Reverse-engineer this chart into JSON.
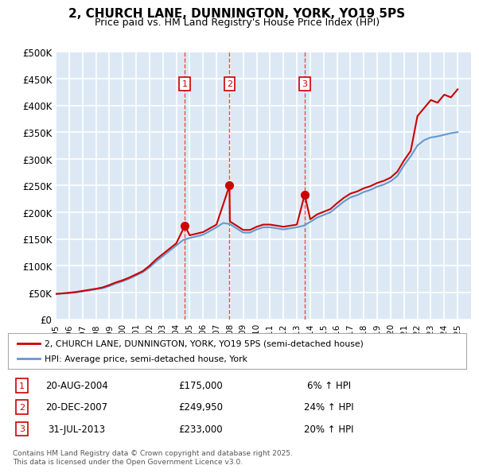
{
  "title": "2, CHURCH LANE, DUNNINGTON, YORK, YO19 5PS",
  "subtitle": "Price paid vs. HM Land Registry's House Price Index (HPI)",
  "ylabel_ticks": [
    "£0",
    "£50K",
    "£100K",
    "£150K",
    "£200K",
    "£250K",
    "£300K",
    "£350K",
    "£400K",
    "£450K",
    "£500K"
  ],
  "ylim": [
    0,
    500000
  ],
  "xlim_start": 1995.0,
  "xlim_end": 2026.0,
  "background_color": "#dce9f5",
  "plot_bg_color": "#dce9f5",
  "grid_color": "#ffffff",
  "red_line_color": "#cc0000",
  "blue_line_color": "#6699cc",
  "transaction_color": "#cc0000",
  "vline_color": "#ff4444",
  "legend_label_red": "2, CHURCH LANE, DUNNINGTON, YORK, YO19 5PS (semi-detached house)",
  "legend_label_blue": "HPI: Average price, semi-detached house, York",
  "footer_text": "Contains HM Land Registry data © Crown copyright and database right 2025.\nThis data is licensed under the Open Government Licence v3.0.",
  "transactions": [
    {
      "num": 1,
      "date": "20-AUG-2004",
      "price": 175000,
      "pct": "6%",
      "dir": "↑",
      "x": 2004.64
    },
    {
      "num": 2,
      "date": "20-DEC-2007",
      "price": 249950,
      "pct": "24%",
      "dir": "↑",
      "x": 2007.97
    },
    {
      "num": 3,
      "date": "31-JUL-2013",
      "price": 233000,
      "pct": "20%",
      "dir": "↑",
      "x": 2013.58
    }
  ],
  "hpi_years": [
    1995,
    1995.5,
    1996,
    1996.5,
    1997,
    1997.5,
    1998,
    1998.5,
    1999,
    1999.5,
    2000,
    2000.5,
    2001,
    2001.5,
    2002,
    2002.5,
    2003,
    2003.5,
    2004,
    2004.5,
    2005,
    2005.5,
    2006,
    2006.5,
    2007,
    2007.5,
    2008,
    2008.5,
    2009,
    2009.5,
    2010,
    2010.5,
    2011,
    2011.5,
    2012,
    2012.5,
    2013,
    2013.5,
    2014,
    2014.5,
    2015,
    2015.5,
    2016,
    2016.5,
    2017,
    2017.5,
    2018,
    2018.5,
    2019,
    2019.5,
    2020,
    2020.5,
    2021,
    2021.5,
    2022,
    2022.5,
    2023,
    2023.5,
    2024,
    2024.5,
    2025
  ],
  "hpi_values": [
    47000,
    48000,
    49000,
    50000,
    52000,
    54000,
    56000,
    58000,
    62000,
    67000,
    71000,
    76000,
    82000,
    88000,
    97000,
    108000,
    118000,
    128000,
    138000,
    148000,
    152000,
    155000,
    158000,
    165000,
    172000,
    180000,
    178000,
    170000,
    162000,
    162000,
    168000,
    172000,
    172000,
    170000,
    168000,
    170000,
    172000,
    175000,
    182000,
    190000,
    195000,
    200000,
    210000,
    220000,
    228000,
    232000,
    238000,
    242000,
    248000,
    252000,
    258000,
    268000,
    288000,
    305000,
    325000,
    335000,
    340000,
    342000,
    345000,
    348000,
    350000
  ],
  "red_years": [
    1995,
    1995.5,
    1996,
    1996.5,
    1997,
    1997.5,
    1998,
    1998.5,
    1999,
    1999.5,
    2000,
    2000.5,
    2001,
    2001.5,
    2002,
    2002.5,
    2003,
    2003.5,
    2004,
    2004.64,
    2005,
    2005.5,
    2006,
    2006.5,
    2007,
    2007.97,
    2008,
    2008.5,
    2009,
    2009.5,
    2010,
    2010.5,
    2011,
    2011.5,
    2012,
    2012.5,
    2013,
    2013.58,
    2014,
    2014.5,
    2015,
    2015.5,
    2016,
    2016.5,
    2017,
    2017.5,
    2018,
    2018.5,
    2019,
    2019.5,
    2020,
    2020.5,
    2021,
    2021.5,
    2022,
    2022.5,
    2023,
    2023.5,
    2024,
    2024.5,
    2025
  ],
  "red_values": [
    47500,
    48500,
    49500,
    51000,
    53000,
    55000,
    57000,
    59500,
    64000,
    69000,
    73000,
    78000,
    84000,
    90000,
    100000,
    112000,
    122000,
    132000,
    142000,
    175000,
    157000,
    160000,
    163000,
    170000,
    177000,
    249950,
    183000,
    175000,
    167000,
    167000,
    173000,
    177000,
    177000,
    175000,
    173000,
    175000,
    177000,
    233000,
    187000,
    196000,
    201000,
    206000,
    217000,
    227000,
    235000,
    239000,
    245000,
    249000,
    255000,
    259000,
    265000,
    276000,
    297000,
    315000,
    380000,
    395000,
    410000,
    405000,
    420000,
    415000,
    430000
  ]
}
